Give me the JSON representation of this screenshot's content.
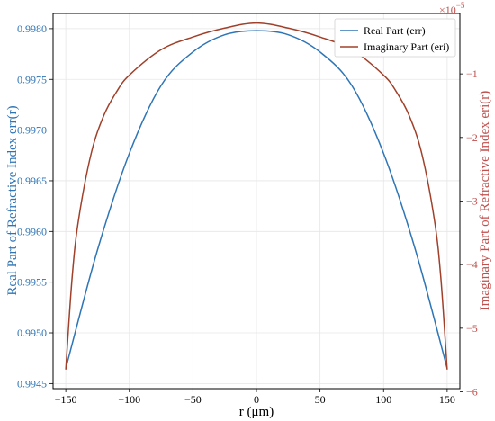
{
  "chart_data": {
    "type": "line",
    "xlabel": "r (μm)",
    "ylabel_left": "Real Part of Refractive Index err(r)",
    "ylabel_right": "Imaginary Part of Refractive Index eri(r)",
    "right_multiplier": "×10",
    "right_exponent": "−5",
    "xlim": [
      -160,
      160
    ],
    "ylim_left": [
      0.99445,
      0.99815
    ],
    "ylim_right": [
      -5.95,
      -0.05
    ],
    "x_ticks": [
      -150,
      -100,
      -50,
      0,
      50,
      100,
      150
    ],
    "left_ticks": [
      0.9945,
      0.995,
      0.9955,
      0.996,
      0.9965,
      0.997,
      0.9975,
      0.998
    ],
    "right_ticks": [
      -1,
      -2,
      -3,
      -4,
      -5,
      -6
    ],
    "x_tick_labels": [
      "−150",
      "−100",
      "−50",
      "0",
      "50",
      "100",
      "150"
    ],
    "left_tick_labels": [
      "0.9945",
      "0.9950",
      "0.9955",
      "0.9960",
      "0.9965",
      "0.9970",
      "0.9975",
      "0.9980"
    ],
    "right_tick_labels": [
      "−1",
      "−2",
      "−3",
      "−4",
      "−5",
      "−6"
    ],
    "grid": true,
    "legend_position": "top-right",
    "series": [
      {
        "name": "Real Part (err)",
        "axis": "left",
        "color": "#2e75b6",
        "x": [
          -150,
          -125,
          -100,
          -75,
          -50,
          -25,
          0,
          25,
          50,
          75,
          100,
          125,
          150
        ],
        "y": [
          0.99465,
          0.99582,
          0.99677,
          0.99744,
          0.99777,
          0.99794,
          0.99798,
          0.99794,
          0.99777,
          0.99744,
          0.99677,
          0.99582,
          0.99465
        ]
      },
      {
        "name": "Imaginary Part (eri)",
        "axis": "right",
        "color": "#a0402a",
        "x": [
          -150,
          -145,
          -140,
          -130,
          -120,
          -110,
          -100,
          -75,
          -50,
          -25,
          0,
          25,
          50,
          75,
          100,
          110,
          120,
          130,
          140,
          145,
          150
        ],
        "y": [
          -5.65,
          -4.2,
          -3.3,
          -2.25,
          -1.65,
          -1.28,
          -1.02,
          -0.62,
          -0.42,
          -0.28,
          -0.2,
          -0.28,
          -0.42,
          -0.62,
          -1.02,
          -1.28,
          -1.65,
          -2.25,
          -3.3,
          -4.2,
          -5.65
        ]
      }
    ]
  }
}
